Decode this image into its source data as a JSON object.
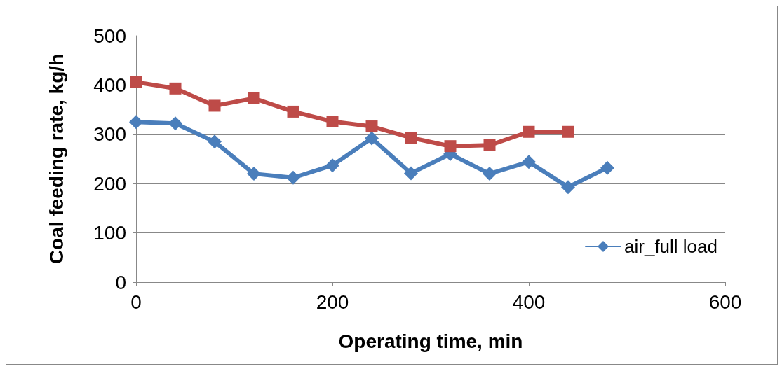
{
  "chart_data": {
    "type": "line",
    "xlabel": "Operating time, min",
    "ylabel": "Coal feeding rate, kg/h",
    "xlim": [
      0,
      600
    ],
    "xticks": [
      0,
      200,
      400,
      600
    ],
    "ylim": [
      0,
      500
    ],
    "yticks": [
      0,
      100,
      200,
      300,
      400,
      500
    ],
    "grid": "y",
    "legend": "bottom right",
    "line_style": "solid",
    "series": [
      {
        "name": "air_full load",
        "color": "#4a7ebb",
        "marker": "diamond",
        "x": [
          0,
          40,
          80,
          120,
          160,
          200,
          240,
          280,
          320,
          360,
          400,
          440,
          480
        ],
        "values": [
          325,
          322,
          285,
          220,
          212,
          237,
          292,
          221,
          260,
          220,
          244,
          193,
          232
        ]
      },
      {
        "color": "#be4b48",
        "marker": "square",
        "x": [
          0,
          40,
          80,
          120,
          160,
          200,
          240,
          280,
          320,
          360,
          400,
          440
        ],
        "values": [
          406,
          393,
          358,
          373,
          346,
          326,
          316,
          293,
          276,
          278,
          305,
          305
        ]
      }
    ]
  }
}
